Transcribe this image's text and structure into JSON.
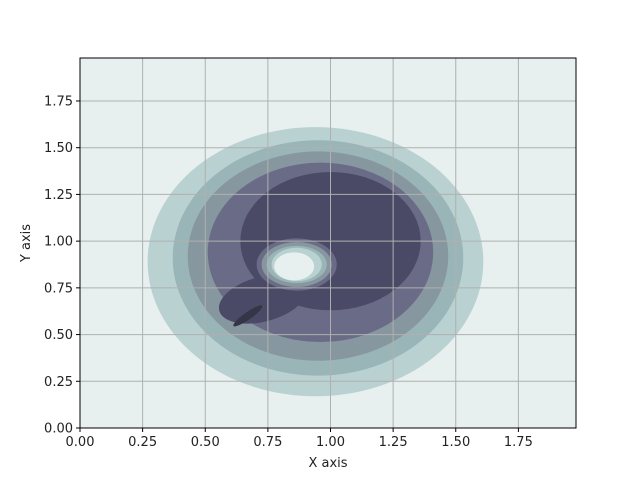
{
  "chart_data": {
    "type": "contourf",
    "title": "",
    "xlabel": "X axis",
    "ylabel": "Y axis",
    "xlim": [
      0,
      1.98
    ],
    "ylim": [
      0,
      1.98
    ],
    "grid": true,
    "x_ticks": [
      0,
      0.25,
      0.5,
      0.75,
      1.0,
      1.25,
      1.5,
      1.75
    ],
    "x_tick_labels": [
      "0.00",
      "0.25",
      "0.50",
      "0.75",
      "1.00",
      "1.25",
      "1.50",
      "1.75"
    ],
    "y_ticks": [
      0,
      0.25,
      0.5,
      0.75,
      1.0,
      1.25,
      1.5,
      1.75
    ],
    "y_tick_labels": [
      "0.00",
      "0.25",
      "0.50",
      "0.75",
      "1.00",
      "1.25",
      "1.50",
      "1.75"
    ],
    "colormap": "bone",
    "levels": [
      {
        "name": "level-0",
        "color": "#e7efef"
      },
      {
        "name": "level-1",
        "color": "#b9d1d1"
      },
      {
        "name": "level-2",
        "color": "#9ab5b8"
      },
      {
        "name": "level-3",
        "color": "#87979f"
      },
      {
        "name": "level-4",
        "color": "#6a6c87"
      },
      {
        "name": "level-5",
        "color": "#4a4a66"
      },
      {
        "name": "level-6",
        "color": "#353548"
      },
      {
        "name": "level-7",
        "color": "#131418"
      }
    ],
    "regions": [
      {
        "level": 1,
        "cx": 0.94,
        "cy": 0.89,
        "rx": 0.67,
        "ry": 0.72,
        "rot": 0
      },
      {
        "level": 2,
        "cx": 0.95,
        "cy": 0.91,
        "rx": 0.58,
        "ry": 0.63,
        "rot": 0
      },
      {
        "level": 3,
        "cx": 0.95,
        "cy": 0.92,
        "rx": 0.52,
        "ry": 0.56,
        "rot": 0
      },
      {
        "level": 4,
        "cx": 0.96,
        "cy": 0.94,
        "rx": 0.45,
        "ry": 0.48,
        "rot": 0
      },
      {
        "level": 5,
        "cx": 1.0,
        "cy": 1.0,
        "rx": 0.36,
        "ry": 0.37,
        "rot": 0
      },
      {
        "level": 5,
        "cx": 0.73,
        "cy": 0.69,
        "rx": 0.18,
        "ry": 0.12,
        "rot": -15
      },
      {
        "level": 6,
        "cx": 0.67,
        "cy": 0.6,
        "rx": 0.07,
        "ry": 0.02,
        "rot": -35
      },
      {
        "level": 5,
        "cx": 0.865,
        "cy": 0.875,
        "rx": 0.18,
        "ry": 0.16,
        "rot": 0
      },
      {
        "level": 4,
        "cx": 0.865,
        "cy": 0.875,
        "rx": 0.16,
        "ry": 0.14,
        "rot": 0
      },
      {
        "level": 3,
        "cx": 0.865,
        "cy": 0.875,
        "rx": 0.14,
        "ry": 0.12,
        "rot": 0
      },
      {
        "level": 2,
        "cx": 0.865,
        "cy": 0.875,
        "rx": 0.12,
        "ry": 0.1,
        "rot": 0
      },
      {
        "level": 1,
        "cx": 0.865,
        "cy": 0.875,
        "rx": 0.1,
        "ry": 0.09,
        "rot": 0
      },
      {
        "level": 0,
        "cx": 0.855,
        "cy": 0.865,
        "rx": 0.08,
        "ry": 0.075,
        "rot": 0
      }
    ]
  }
}
